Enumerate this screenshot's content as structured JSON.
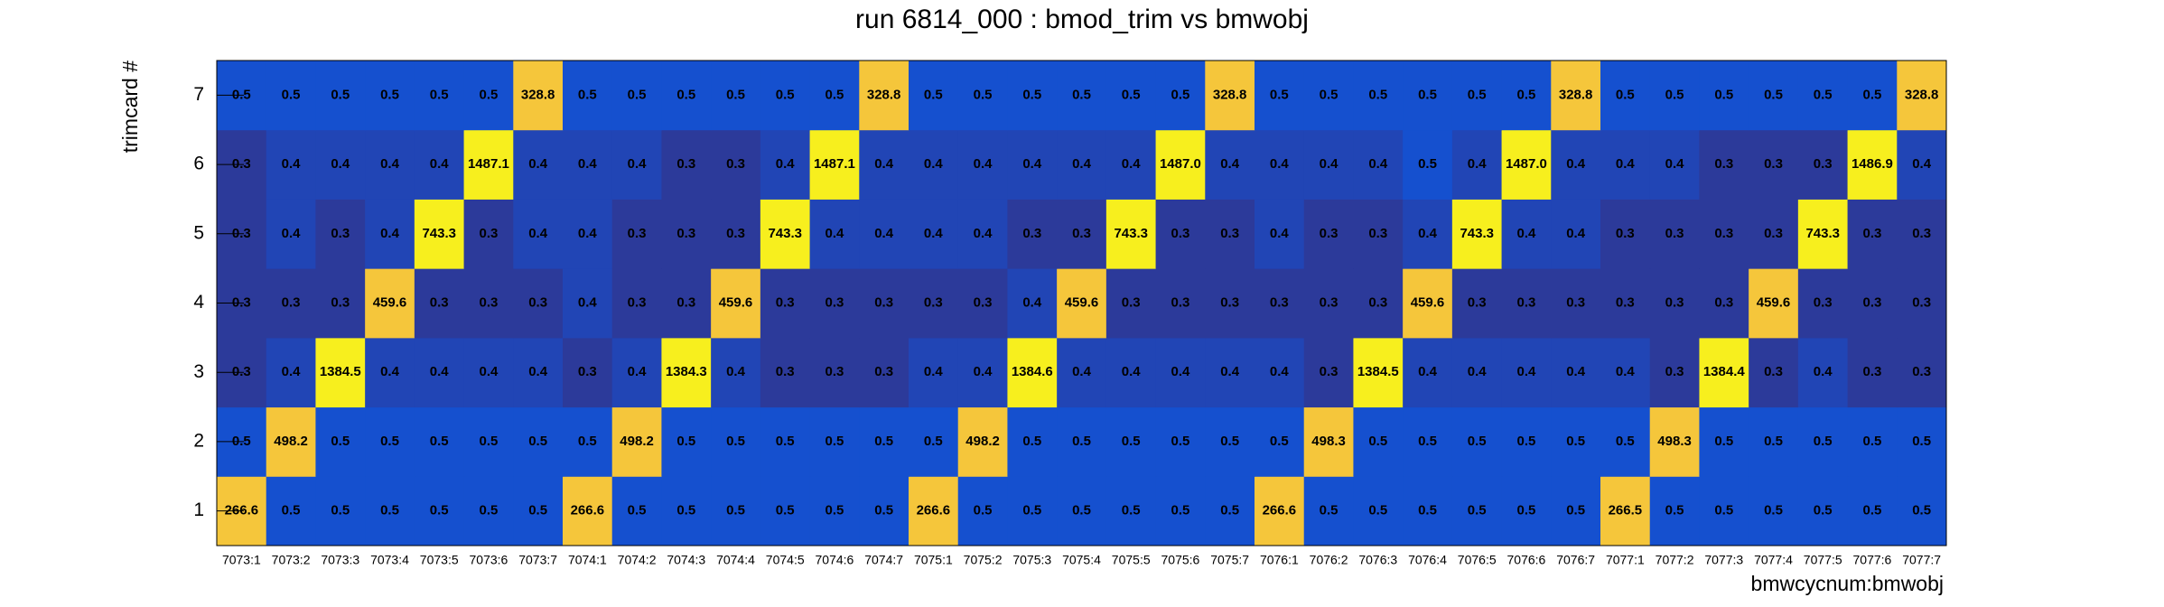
{
  "chart_data": {
    "type": "heatmap",
    "title": "run 6814_000 : bmod_trim vs bmwobj",
    "x_label": "bmwcycnum:bmwobj",
    "y_label": "trimcard #",
    "categories": [
      "7073:1",
      "7073:2",
      "7073:3",
      "7073:4",
      "7073:5",
      "7073:6",
      "7073:7",
      "7074:1",
      "7074:2",
      "7074:3",
      "7074:4",
      "7074:5",
      "7074:6",
      "7074:7",
      "7075:1",
      "7075:2",
      "7075:3",
      "7075:4",
      "7075:5",
      "7075:6",
      "7075:7",
      "7076:1",
      "7076:2",
      "7076:3",
      "7076:4",
      "7076:5",
      "7076:6",
      "7076:7",
      "7077:1",
      "7077:2",
      "7077:3",
      "7077:4",
      "7077:5",
      "7077:6",
      "7077:7"
    ],
    "ylim": [
      0.5,
      7.5
    ],
    "yticks": [
      1,
      2,
      3,
      4,
      5,
      6,
      7
    ],
    "z": [
      [
        266.6,
        0.5,
        0.5,
        0.5,
        0.5,
        0.5,
        0.5,
        266.6,
        0.5,
        0.5,
        0.5,
        0.5,
        0.5,
        0.5,
        266.6,
        0.5,
        0.5,
        0.5,
        0.5,
        0.5,
        0.5,
        266.6,
        0.5,
        0.5,
        0.5,
        0.5,
        0.5,
        0.5,
        266.5,
        0.5,
        0.5,
        0.5,
        0.5,
        0.5,
        0.5
      ],
      [
        0.5,
        498.2,
        0.5,
        0.5,
        0.5,
        0.5,
        0.5,
        0.5,
        498.2,
        0.5,
        0.5,
        0.5,
        0.5,
        0.5,
        0.5,
        498.2,
        0.5,
        0.5,
        0.5,
        0.5,
        0.5,
        0.5,
        498.3,
        0.5,
        0.5,
        0.5,
        0.5,
        0.5,
        0.5,
        498.3,
        0.5,
        0.5,
        0.5,
        0.5,
        0.5
      ],
      [
        0.3,
        0.4,
        1384.5,
        0.4,
        0.4,
        0.4,
        0.4,
        0.3,
        0.4,
        1384.3,
        0.4,
        0.3,
        0.3,
        0.3,
        0.4,
        0.4,
        1384.6,
        0.4,
        0.4,
        0.4,
        0.4,
        0.4,
        0.3,
        1384.5,
        0.4,
        0.4,
        0.4,
        0.4,
        0.4,
        0.3,
        1384.4,
        0.3,
        0.4,
        0.3,
        0.3
      ],
      [
        0.3,
        0.3,
        0.3,
        459.6,
        0.3,
        0.3,
        0.3,
        0.4,
        0.3,
        0.3,
        459.6,
        0.3,
        0.3,
        0.3,
        0.3,
        0.3,
        0.4,
        459.6,
        0.3,
        0.3,
        0.3,
        0.3,
        0.3,
        0.3,
        459.6,
        0.3,
        0.3,
        0.3,
        0.3,
        0.3,
        0.3,
        459.6,
        0.3,
        0.3,
        0.3
      ],
      [
        0.3,
        0.4,
        0.3,
        0.4,
        743.3,
        0.3,
        0.4,
        0.4,
        0.3,
        0.3,
        0.3,
        743.3,
        0.4,
        0.4,
        0.4,
        0.4,
        0.3,
        0.3,
        743.3,
        0.3,
        0.3,
        0.4,
        0.3,
        0.3,
        0.4,
        743.3,
        0.4,
        0.4,
        0.3,
        0.3,
        0.3,
        0.3,
        743.3,
        0.3,
        0.3
      ],
      [
        0.3,
        0.4,
        0.4,
        0.4,
        0.4,
        1487.1,
        0.4,
        0.4,
        0.4,
        0.3,
        0.3,
        0.4,
        1487.1,
        0.4,
        0.4,
        0.4,
        0.4,
        0.4,
        0.4,
        1487.0,
        0.4,
        0.4,
        0.4,
        0.4,
        0.5,
        0.4,
        1487.0,
        0.4,
        0.4,
        0.4,
        0.3,
        0.3,
        0.3,
        1486.9,
        0.4
      ],
      [
        0.5,
        0.5,
        0.5,
        0.5,
        0.5,
        0.5,
        328.8,
        0.5,
        0.5,
        0.5,
        0.5,
        0.5,
        0.5,
        328.8,
        0.5,
        0.5,
        0.5,
        0.5,
        0.5,
        0.5,
        328.8,
        0.5,
        0.5,
        0.5,
        0.5,
        0.5,
        0.5,
        328.8,
        0.5,
        0.5,
        0.5,
        0.5,
        0.5,
        0.5,
        328.8
      ]
    ],
    "value_labels": [
      [
        "266.6",
        "0.5",
        "0.5",
        "0.5",
        "0.5",
        "0.5",
        "0.5",
        "266.6",
        "0.5",
        "0.5",
        "0.5",
        "0.5",
        "0.5",
        "0.5",
        "266.6",
        "0.5",
        "0.5",
        "0.5",
        "0.5",
        "0.5",
        "0.5",
        "266.6",
        "0.5",
        "0.5",
        "0.5",
        "0.5",
        "0.5",
        "0.5",
        "266.5",
        "0.5",
        "0.5",
        "0.5",
        "0.5",
        "0.5",
        "0.5"
      ],
      [
        "0.5",
        "498.2",
        "0.5",
        "0.5",
        "0.5",
        "0.5",
        "0.5",
        "0.5",
        "498.2",
        "0.5",
        "0.5",
        "0.5",
        "0.5",
        "0.5",
        "0.5",
        "498.2",
        "0.5",
        "0.5",
        "0.5",
        "0.5",
        "0.5",
        "0.5",
        "498.3",
        "0.5",
        "0.5",
        "0.5",
        "0.5",
        "0.5",
        "0.5",
        "498.3",
        "0.5",
        "0.5",
        "0.5",
        "0.5",
        "0.5"
      ],
      [
        "0.3",
        "0.4",
        "1384.5",
        "0.4",
        "0.4",
        "0.4",
        "0.4",
        "0.3",
        "0.4",
        "1384.3",
        "0.4",
        "0.3",
        "0.3",
        "0.3",
        "0.4",
        "0.4",
        "1384.6",
        "0.4",
        "0.4",
        "0.4",
        "0.4",
        "0.4",
        "0.3",
        "1384.5",
        "0.4",
        "0.4",
        "0.4",
        "0.4",
        "0.4",
        "0.3",
        "1384.4",
        "0.3",
        "0.4",
        "0.3",
        "0.3"
      ],
      [
        "0.3",
        "0.3",
        "0.3",
        "459.6",
        "0.3",
        "0.3",
        "0.3",
        "0.4",
        "0.3",
        "0.3",
        "459.6",
        "0.3",
        "0.3",
        "0.3",
        "0.3",
        "0.3",
        "0.4",
        "459.6",
        "0.3",
        "0.3",
        "0.3",
        "0.3",
        "0.3",
        "0.3",
        "459.6",
        "0.3",
        "0.3",
        "0.3",
        "0.3",
        "0.3",
        "0.3",
        "459.6",
        "0.3",
        "0.3",
        "0.3"
      ],
      [
        "0.3",
        "0.4",
        "0.3",
        "0.4",
        "743.3",
        "0.3",
        "0.4",
        "0.4",
        "0.3",
        "0.3",
        "0.3",
        "743.3",
        "0.4",
        "0.4",
        "0.4",
        "0.4",
        "0.3",
        "0.3",
        "743.3",
        "0.3",
        "0.3",
        "0.4",
        "0.3",
        "0.3",
        "0.4",
        "743.3",
        "0.4",
        "0.4",
        "0.3",
        "0.3",
        "0.3",
        "0.3",
        "743.3",
        "0.3",
        "0.3"
      ],
      [
        "0.3",
        "0.4",
        "0.4",
        "0.4",
        "0.4",
        "1487.1",
        "0.4",
        "0.4",
        "0.4",
        "0.3",
        "0.3",
        "0.4",
        "1487.1",
        "0.4",
        "0.4",
        "0.4",
        "0.4",
        "0.4",
        "0.4",
        "1487.0",
        "0.4",
        "0.4",
        "0.4",
        "0.4",
        "0.5",
        "0.4",
        "1487.0",
        "0.4",
        "0.4",
        "0.4",
        "0.3",
        "0.3",
        "0.3",
        "1486.9",
        "0.4"
      ],
      [
        "0.5",
        "0.5",
        "0.5",
        "0.5",
        "0.5",
        "0.5",
        "328.8",
        "0.5",
        "0.5",
        "0.5",
        "0.5",
        "0.5",
        "0.5",
        "328.8",
        "0.5",
        "0.5",
        "0.5",
        "0.5",
        "0.5",
        "0.5",
        "328.8",
        "0.5",
        "0.5",
        "0.5",
        "0.5",
        "0.5",
        "0.5",
        "328.8",
        "0.5",
        "0.5",
        "0.5",
        "0.5",
        "0.5",
        "0.5",
        "328.8"
      ]
    ]
  }
}
